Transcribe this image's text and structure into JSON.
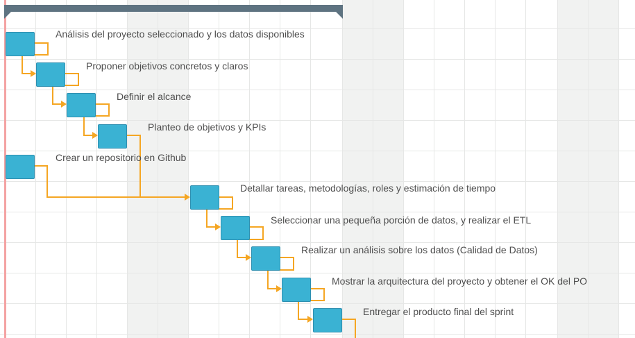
{
  "colors": {
    "task_fill": "#3ab2d3",
    "task_border": "#2e8fb0",
    "link": "#f5a623",
    "summary": "#5e7381",
    "today_line": "#f4a3a3",
    "weekend": "#f1f2f1",
    "grid": "#e6e7e6",
    "label": "#4e4e4e"
  },
  "tasks": [
    {
      "id": "t1",
      "label": "Análisis del proyecto seleccionado y los datos disponibles"
    },
    {
      "id": "t2",
      "label": "Proponer objetivos concretos y claros"
    },
    {
      "id": "t3",
      "label": "Definir el alcance"
    },
    {
      "id": "t4",
      "label": "Planteo de objetivos y KPIs"
    },
    {
      "id": "t5",
      "label": "Crear un repositorio en Github"
    },
    {
      "id": "t6",
      "label": "Detallar tareas, metodologías, roles y estimación de tiempo"
    },
    {
      "id": "t7",
      "label": "Seleccionar una pequeña porción de datos, y realizar el ETL"
    },
    {
      "id": "t8",
      "label": "Realizar un análisis sobre los datos (Calidad de Datos)"
    },
    {
      "id": "t9",
      "label": "Mostrar la arquitectura del proyecto y obtener el OK del PO"
    },
    {
      "id": "t10",
      "label": "Entregar el producto final del sprint"
    }
  ],
  "dependencies": [
    [
      "t1",
      "t2"
    ],
    [
      "t2",
      "t3"
    ],
    [
      "t3",
      "t4"
    ],
    [
      "t4",
      "t6"
    ],
    [
      "t5",
      "t6"
    ],
    [
      "t6",
      "t7"
    ],
    [
      "t7",
      "t8"
    ],
    [
      "t8",
      "t9"
    ],
    [
      "t9",
      "t10"
    ]
  ]
}
